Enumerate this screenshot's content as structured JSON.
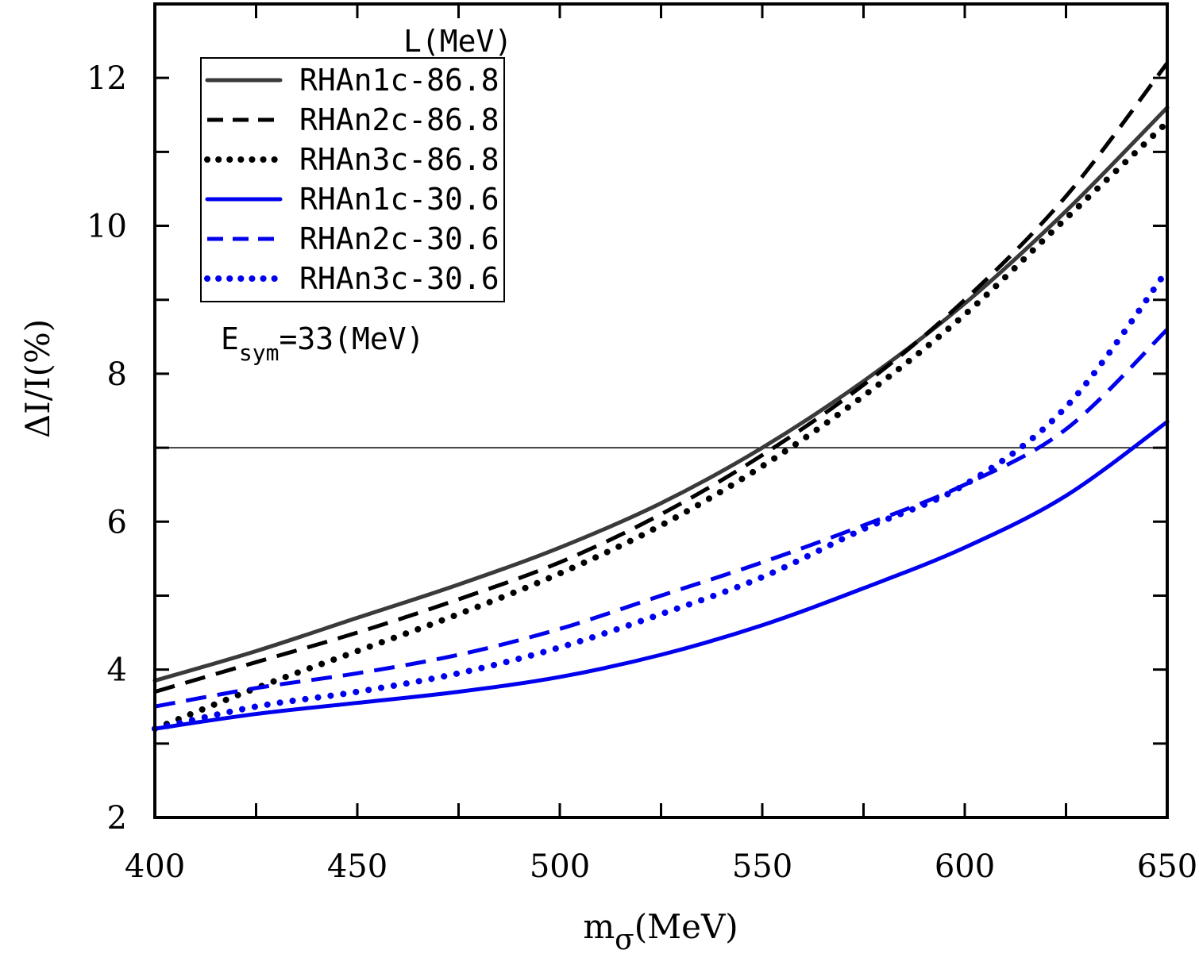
{
  "chart_data": {
    "type": "line",
    "xlabel": "mσ(MeV)",
    "xlabel_main": "m",
    "xlabel_sub": "σ",
    "xlabel_unit": "(MeV)",
    "ylabel": "ΔI/I(%)",
    "xlim": [
      400,
      650
    ],
    "ylim": [
      2,
      13
    ],
    "xticks": [
      400,
      450,
      500,
      550,
      600,
      650
    ],
    "yticks": [
      2,
      4,
      6,
      8,
      10,
      12
    ],
    "x_minor_step": 25,
    "y_minor_step": 1,
    "reference_line_y": 7,
    "legend_title": "L(MeV)",
    "legend_position": "top-left",
    "annotation": {
      "main": "E",
      "sub": "sym",
      "rest": "=33(MeV)"
    },
    "x": [
      400,
      425,
      450,
      475,
      500,
      525,
      550,
      575,
      600,
      625,
      650
    ],
    "series": [
      {
        "name": "RHAn1c-86.8",
        "color": "#3a3a3a",
        "style": "solid",
        "values": [
          3.85,
          4.25,
          4.7,
          5.15,
          5.65,
          6.25,
          7.0,
          7.9,
          8.95,
          10.2,
          11.6
        ]
      },
      {
        "name": "RHAn2c-86.8",
        "color": "#000000",
        "style": "dashed",
        "values": [
          3.7,
          4.1,
          4.5,
          4.95,
          5.45,
          6.1,
          6.9,
          7.85,
          9.0,
          10.4,
          12.2
        ]
      },
      {
        "name": "RHAn3c-86.8",
        "color": "#000000",
        "style": "dotted",
        "values": [
          3.2,
          3.75,
          4.25,
          4.75,
          5.3,
          5.95,
          6.75,
          7.7,
          8.8,
          10.1,
          11.4
        ]
      },
      {
        "name": "RHAn1c-30.6",
        "color": "#0000ee",
        "style": "solid",
        "values": [
          3.2,
          3.4,
          3.55,
          3.7,
          3.9,
          4.2,
          4.6,
          5.1,
          5.65,
          6.35,
          7.35
        ]
      },
      {
        "name": "RHAn2c-30.6",
        "color": "#0000ee",
        "style": "dashed",
        "values": [
          3.5,
          3.75,
          3.95,
          4.2,
          4.55,
          5.0,
          5.45,
          5.95,
          6.5,
          7.25,
          8.6
        ]
      },
      {
        "name": "RHAn3c-30.6",
        "color": "#0000ee",
        "style": "dotted",
        "values": [
          3.2,
          3.5,
          3.7,
          3.95,
          4.3,
          4.75,
          5.25,
          5.9,
          6.5,
          7.55,
          9.4
        ]
      }
    ]
  }
}
